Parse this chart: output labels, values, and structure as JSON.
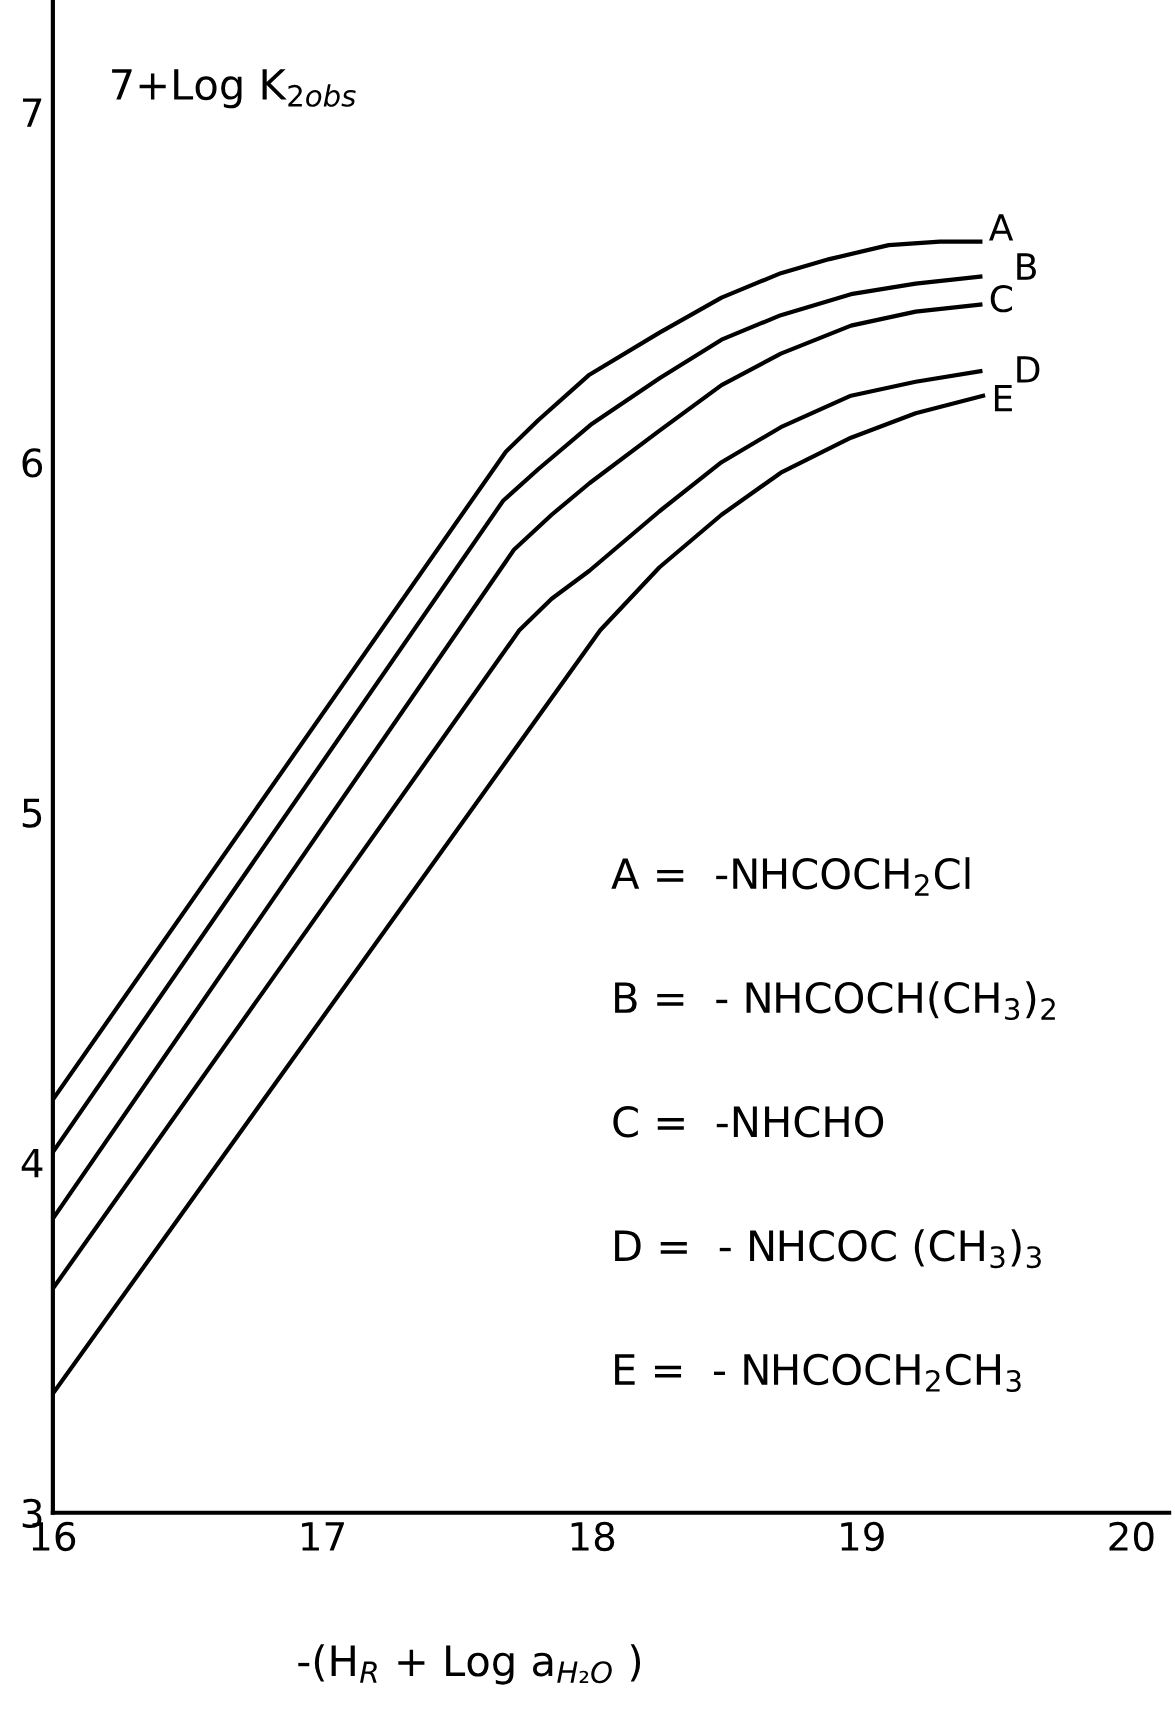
{
  "chart_data": {
    "type": "line",
    "ylabel": "7+Log K$_{2obs}$",
    "xlabel": "-(H$_{R}$ + Log a$_{H₂O}$ )",
    "xlim": [
      16,
      20.14
    ],
    "ylim": [
      3,
      7.32
    ],
    "xticks": [
      16,
      17,
      18,
      19,
      20
    ],
    "yticks": [
      3,
      4,
      5,
      6,
      7
    ],
    "grid": false,
    "legend": false,
    "series": [
      {
        "name": "A",
        "color": "#000000",
        "x": [
          16,
          17.68,
          17.8,
          17.99,
          18.25,
          18.48,
          18.7,
          18.88,
          19.1,
          19.29,
          19.44
        ],
        "values": [
          4.18,
          6.03,
          6.12,
          6.25,
          6.37,
          6.47,
          6.54,
          6.58,
          6.62,
          6.63,
          6.63
        ]
      },
      {
        "name": "B",
        "color": "#000000",
        "x": [
          16,
          17.67,
          17.8,
          18.0,
          18.25,
          18.48,
          18.7,
          18.96,
          19.2,
          19.44
        ],
        "values": [
          4.03,
          5.89,
          5.98,
          6.11,
          6.24,
          6.35,
          6.42,
          6.48,
          6.51,
          6.53
        ]
      },
      {
        "name": "C",
        "color": "#000000",
        "x": [
          16,
          17.71,
          17.85,
          17.99,
          18.25,
          18.48,
          18.7,
          18.96,
          19.2,
          19.44
        ],
        "values": [
          3.84,
          5.75,
          5.85,
          5.94,
          6.09,
          6.22,
          6.31,
          6.39,
          6.43,
          6.45
        ]
      },
      {
        "name": "D",
        "color": "#000000",
        "x": [
          16,
          17.73,
          17.85,
          17.99,
          18.25,
          18.48,
          18.7,
          18.96,
          19.2,
          19.44
        ],
        "values": [
          3.64,
          5.52,
          5.61,
          5.69,
          5.86,
          6.0,
          6.1,
          6.19,
          6.23,
          6.26
        ]
      },
      {
        "name": "E",
        "color": "#000000",
        "x": [
          16,
          18.03,
          18.25,
          18.48,
          18.7,
          18.96,
          19.2,
          19.45
        ],
        "values": [
          3.34,
          5.52,
          5.7,
          5.85,
          5.97,
          6.07,
          6.14,
          6.19
        ]
      }
    ],
    "annotations": [
      "A =  -NHCOCH$_{2}$Cl",
      "B =  - NHCOCH(CH$_{3}$)$_{2}$",
      "C =  -NHCHO",
      "D =  - NHCOC (CH$_{3}$)$_{3}$",
      "E =  - NHCOCH$_{2}$CH$_{3}$"
    ]
  }
}
